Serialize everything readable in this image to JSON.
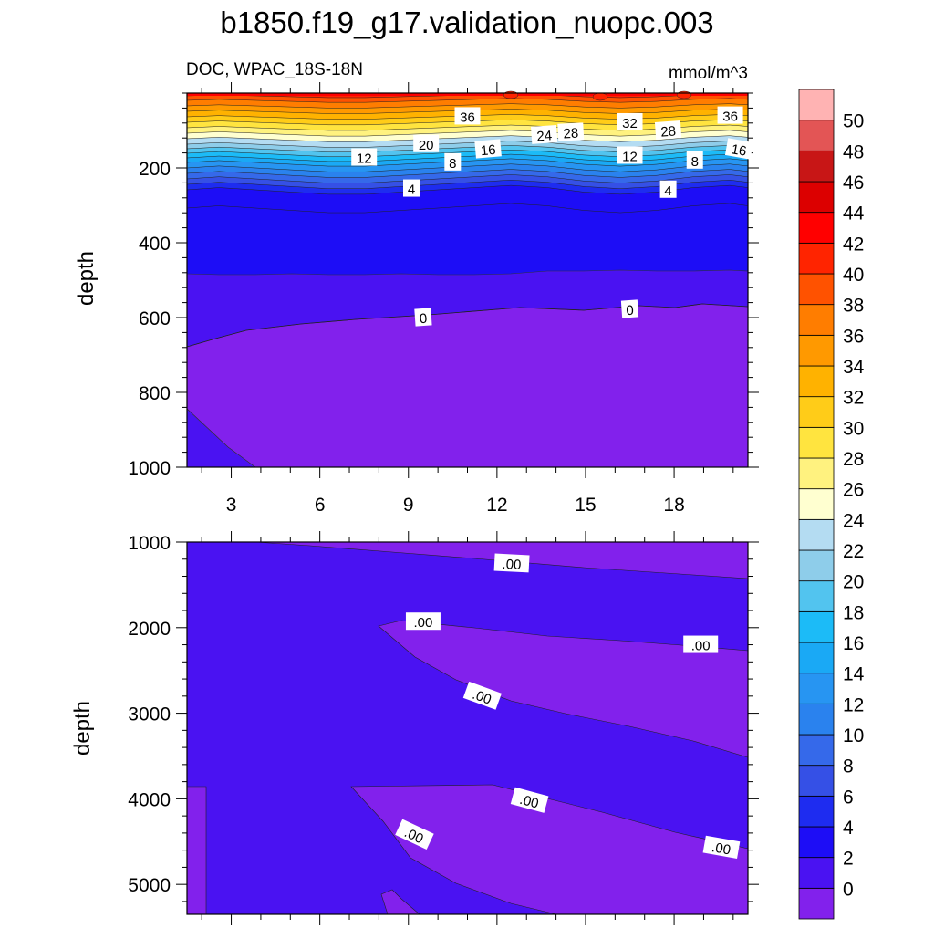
{
  "title": "b1850.f19_g17.validation_nuopc.003",
  "chart_data": [
    {
      "type": "contour",
      "panel": "upper",
      "subtitle_left": "DOC, WPAC_18S-18N",
      "subtitle_right": "mmol/m^3",
      "ylabel": "depth",
      "ylim": [
        0,
        1000
      ],
      "y_inverted": true,
      "y_ticks": [
        200,
        400,
        600,
        800,
        1000
      ],
      "xlim": [
        1.5,
        20.5
      ],
      "x_ticks": [
        3,
        6,
        9,
        12,
        15,
        18
      ],
      "contour_labels": [
        {
          "text": "36",
          "x": 11.0,
          "y": 62
        },
        {
          "text": "32",
          "x": 16.5,
          "y": 78
        },
        {
          "text": "36",
          "x": 19.9,
          "y": 60
        },
        {
          "text": "20",
          "x": 9.6,
          "y": 136
        },
        {
          "text": "24",
          "x": 13.6,
          "y": 112
        },
        {
          "text": "28",
          "x": 14.5,
          "y": 105
        },
        {
          "text": "28",
          "x": 17.8,
          "y": 100
        },
        {
          "text": "16",
          "x": 11.7,
          "y": 150
        },
        {
          "text": "16",
          "x": 20.2,
          "y": 150
        },
        {
          "text": "12",
          "x": 7.5,
          "y": 172
        },
        {
          "text": "12",
          "x": 16.5,
          "y": 167
        },
        {
          "text": "8",
          "x": 10.5,
          "y": 185
        },
        {
          "text": "8",
          "x": 18.7,
          "y": 180
        },
        {
          "text": "4",
          "x": 9.1,
          "y": 255
        },
        {
          "text": "4",
          "x": 17.8,
          "y": 258
        },
        {
          "text": "0",
          "x": 9.5,
          "y": 600
        },
        {
          "text": "0",
          "x": 16.5,
          "y": 578
        }
      ]
    },
    {
      "type": "contour",
      "panel": "lower",
      "ylabel": "depth",
      "ylim": [
        1000,
        5350
      ],
      "y_inverted": true,
      "y_ticks": [
        1000,
        2000,
        3000,
        4000,
        5000
      ],
      "xlim": [
        1.5,
        20.5
      ],
      "contour_labels": [
        {
          "text": ".00",
          "x": 12.5,
          "y": 1250
        },
        {
          "text": ".00",
          "x": 9.5,
          "y": 1930
        },
        {
          "text": ".00",
          "x": 18.9,
          "y": 2200
        },
        {
          "text": ".00",
          "x": 11.5,
          "y": 2800
        },
        {
          "text": ".00",
          "x": 13.1,
          "y": 4020
        },
        {
          "text": ".00",
          "x": 9.2,
          "y": 4420
        },
        {
          "text": ".00",
          "x": 19.6,
          "y": 4570
        }
      ]
    }
  ],
  "colorbar": {
    "labels": [
      "0",
      "2",
      "4",
      "6",
      "8",
      "10",
      "12",
      "14",
      "16",
      "18",
      "20",
      "22",
      "24",
      "26",
      "28",
      "30",
      "32",
      "34",
      "36",
      "38",
      "40",
      "42",
      "44",
      "46",
      "48",
      "50"
    ],
    "colors": [
      "#8221ec",
      "#4a12f2",
      "#1d0df6",
      "#1e2cf0",
      "#3550e6",
      "#3569ea",
      "#2a82ee",
      "#2795f2",
      "#1aa9f5",
      "#1cbbf7",
      "#52c4ef",
      "#8ecdea",
      "#b4dcf2",
      "#ffffd0",
      "#fff27f",
      "#ffe43f",
      "#ffcc18",
      "#ffb200",
      "#ff9900",
      "#ff7d00",
      "#ff5200",
      "#ff2400",
      "#ff0000",
      "#dc0000",
      "#c81616",
      "#e35555",
      "#ffb3b3"
    ]
  }
}
